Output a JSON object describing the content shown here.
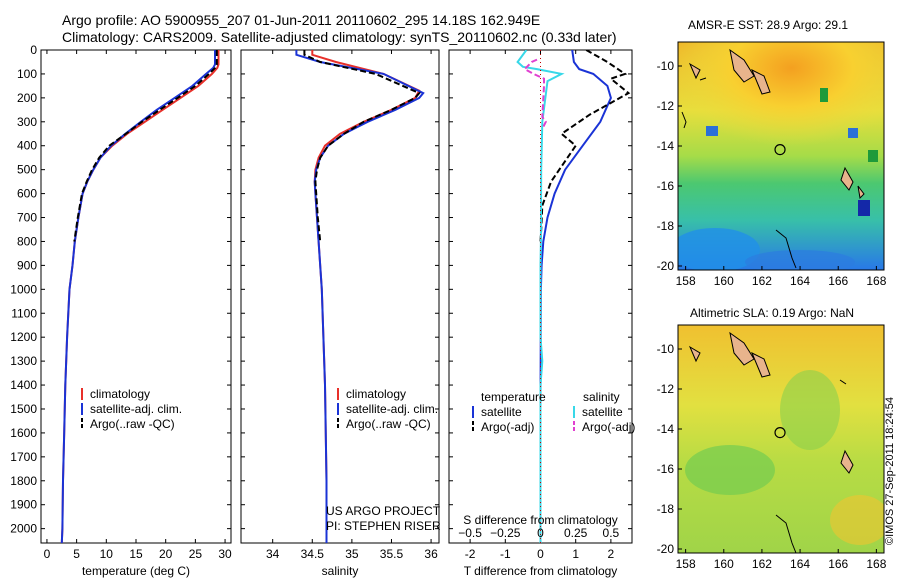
{
  "header": {
    "line1": "Argo profile: AO 5900955_207 01-Jun-2011 20110602_295 14.18S 162.949E",
    "line2": "Climatology: CARS2009. Satellite-adjusted climatology: synTS_20110602.nc (0.33d later)"
  },
  "colors": {
    "climatology": "#e8302a",
    "satellite": "#1a33d6",
    "argo": "#000000",
    "sal_satellite": "#38d8e8",
    "sal_argo": "#e040d0"
  },
  "depth_axis": {
    "min": 0,
    "max": 2060,
    "ticks": [
      0,
      100,
      200,
      300,
      400,
      500,
      600,
      700,
      800,
      900,
      1000,
      1100,
      1200,
      1300,
      1400,
      1500,
      1600,
      1700,
      1800,
      1900,
      2000
    ]
  },
  "chart_data": [
    {
      "type": "line",
      "id": "temperature",
      "xlabel": "temperature (deg C)",
      "xlim": [
        -1,
        31
      ],
      "xticks": [
        0,
        5,
        10,
        15,
        20,
        25,
        30
      ],
      "ylim": [
        0,
        2060
      ],
      "legend": [
        "climatology",
        "satellite-adj. clim.",
        "Argo(..raw -QC)"
      ],
      "series": [
        {
          "name": "climatology",
          "color_key": "climatology",
          "x": [
            28.9,
            28.9,
            28.7,
            27.8,
            25.5,
            22.5,
            19.5,
            16.5,
            13.5,
            11,
            9,
            7.8,
            6.8,
            6,
            5.3,
            4.7,
            4.3,
            3.8,
            3.4,
            3.1,
            2.9,
            2.7,
            2.6,
            2.5
          ],
          "y": [
            0,
            60,
            75,
            100,
            150,
            200,
            250,
            300,
            350,
            400,
            450,
            500,
            550,
            600,
            700,
            800,
            900,
            1000,
            1200,
            1400,
            1600,
            1800,
            2000,
            2060
          ]
        },
        {
          "name": "satellite-adj. clim.",
          "color_key": "satellite",
          "x": [
            28.3,
            28.3,
            28.0,
            26.8,
            24.5,
            21.5,
            18.5,
            15.8,
            13.2,
            10.8,
            9,
            7.8,
            6.8,
            6,
            5.3,
            4.7,
            4.3,
            3.8,
            3.4,
            3.1,
            2.9,
            2.7,
            2.6,
            2.5
          ],
          "y": [
            0,
            60,
            75,
            100,
            150,
            200,
            250,
            300,
            350,
            400,
            450,
            500,
            550,
            600,
            700,
            800,
            900,
            1000,
            1200,
            1400,
            1600,
            1800,
            2000,
            2060
          ]
        },
        {
          "name": "Argo(..raw -QC)",
          "color_key": "argo",
          "dashed": true,
          "x": [
            28.6,
            28.6,
            28.3,
            27.3,
            25,
            22,
            19,
            16,
            13.3,
            10.5,
            8.8,
            7.6,
            6.7,
            5.9,
            5.2,
            4.6
          ],
          "y": [
            0,
            60,
            75,
            100,
            150,
            200,
            250,
            300,
            350,
            400,
            450,
            500,
            550,
            600,
            700,
            800
          ]
        }
      ]
    },
    {
      "type": "line",
      "id": "salinity",
      "xlabel": "salinity",
      "xlim": [
        33.6,
        36.1
      ],
      "xticks": [
        34,
        34.5,
        35,
        35.5,
        36
      ],
      "xtick_labels": [
        "34",
        "34.5",
        "35",
        "35.5",
        "36"
      ],
      "ylim": [
        0,
        2060
      ],
      "legend": [
        "climatology",
        "satellite-adj. clim.",
        "Argo(..raw -QC)"
      ],
      "series": [
        {
          "name": "climatology",
          "color_key": "climatology",
          "x": [
            34.5,
            34.5,
            34.8,
            35.4,
            35.85,
            35.8,
            35.5,
            35.15,
            34.85,
            34.66,
            34.58,
            34.54,
            34.53,
            34.54,
            34.56,
            34.58,
            34.6,
            34.62,
            34.64,
            34.66,
            34.68,
            34.68
          ],
          "y": [
            0,
            20,
            50,
            100,
            170,
            200,
            250,
            300,
            350,
            400,
            450,
            500,
            550,
            600,
            700,
            800,
            900,
            1000,
            1200,
            1400,
            1800,
            2060
          ]
        },
        {
          "name": "satellite-adj. clim.",
          "color_key": "satellite",
          "x": [
            34.3,
            34.3,
            34.6,
            35.4,
            35.9,
            35.85,
            35.55,
            35.2,
            34.9,
            34.7,
            34.6,
            34.55,
            34.53,
            34.54,
            34.56,
            34.58,
            34.6,
            34.62,
            34.64,
            34.66,
            34.68,
            34.68
          ],
          "y": [
            0,
            20,
            50,
            100,
            180,
            200,
            250,
            300,
            350,
            400,
            450,
            500,
            550,
            600,
            700,
            800,
            900,
            1000,
            1200,
            1400,
            1800,
            2060
          ]
        },
        {
          "name": "Argo(..raw -QC)",
          "color_key": "argo",
          "dashed": true,
          "x": [
            34.4,
            34.4,
            34.6,
            35.3,
            35.85,
            35.8,
            35.5,
            35.15,
            34.9,
            34.7,
            34.6,
            34.56,
            34.54,
            34.55,
            34.57,
            34.6
          ],
          "y": [
            0,
            20,
            50,
            100,
            180,
            200,
            250,
            300,
            350,
            400,
            450,
            500,
            550,
            600,
            700,
            800
          ]
        }
      ],
      "annotations": [
        "US ARGO PROJECT",
        "PI: STEPHEN RISER"
      ]
    },
    {
      "type": "line",
      "id": "difference",
      "xlabel": "T difference from climatology",
      "xlabel_top": "S difference from climatology",
      "xlim": [
        -2.6,
        2.6
      ],
      "xticks": [
        -2,
        -1,
        0,
        1,
        2
      ],
      "s_ticks": [
        -0.5,
        -0.25,
        0,
        0.25,
        0.5
      ],
      "s_tick_labels": [
        "−0.5",
        "−0.25",
        "0",
        "0.25",
        "0.5"
      ],
      "ylim": [
        0,
        2060
      ],
      "legend": {
        "temperature_heading": "temperature",
        "salinity_heading": "salinity",
        "items": [
          "satellite",
          "Argo(-adj)",
          "satellite",
          "Argo(-adj)"
        ]
      },
      "series": [
        {
          "name": "satellite",
          "quantity": "temperature",
          "color_key": "satellite",
          "x": [
            0.9,
            0.95,
            1.1,
            1.5,
            1.9,
            2.0,
            1.7,
            1.2,
            0.7,
            0.4,
            0.2,
            0.08,
            0.03,
            0.01,
            0,
            0
          ],
          "y": [
            0,
            50,
            80,
            100,
            150,
            200,
            300,
            400,
            500,
            600,
            700,
            800,
            900,
            1000,
            1500,
            2060
          ]
        },
        {
          "name": "Argo(-adj)",
          "quantity": "temperature",
          "color_key": "argo",
          "dashed": true,
          "x": [
            1.3,
            1.9,
            2.4,
            2.0,
            2.5,
            1.4,
            0.6,
            1.0,
            0.3,
            0.05,
            0.02,
            0
          ],
          "y": [
            0,
            50,
            100,
            120,
            180,
            270,
            350,
            400,
            550,
            650,
            750,
            800
          ]
        },
        {
          "name": "satellite",
          "quantity": "salinity",
          "color_key": "sal_satellite",
          "x": [
            -0.4,
            -0.65,
            -0.5,
            -0.1,
            0.6,
            0.2,
            0.05,
            0.02,
            0.01,
            0,
            0,
            0,
            0.05,
            0,
            0
          ],
          "y": [
            0,
            50,
            70,
            80,
            100,
            130,
            300,
            500,
            800,
            900,
            1000,
            1200,
            1300,
            1400,
            2060
          ]
        },
        {
          "name": "Argo(-adj)",
          "quantity": "salinity",
          "color_key": "sal_argo",
          "dashed": true,
          "x": [
            -0.1,
            -0.25,
            -0.45,
            -0.2,
            0.1,
            0.1,
            0.05,
            0.15,
            0.05
          ],
          "y": [
            40,
            50,
            80,
            100,
            120,
            150,
            280,
            300,
            330
          ]
        }
      ]
    }
  ],
  "maps": [
    {
      "title": "AMSR-E SST: 28.9 Argo: 29.1",
      "xticks": [
        158,
        160,
        162,
        164,
        166,
        168
      ],
      "yticks": [
        -10,
        -12,
        -14,
        -16,
        -18,
        -20
      ],
      "marker": {
        "lon": 162.949,
        "lat": -14.18
      }
    },
    {
      "title": "Altimetric SLA: 0.19 Argo: NaN",
      "xticks": [
        158,
        160,
        162,
        164,
        166,
        168
      ],
      "yticks": [
        -10,
        -12,
        -14,
        -16,
        -18,
        -20
      ],
      "marker": {
        "lon": 162.949,
        "lat": -14.18
      }
    }
  ],
  "footer": {
    "stamp": "©IMOS 27-Sep-2011 18:24:54"
  }
}
